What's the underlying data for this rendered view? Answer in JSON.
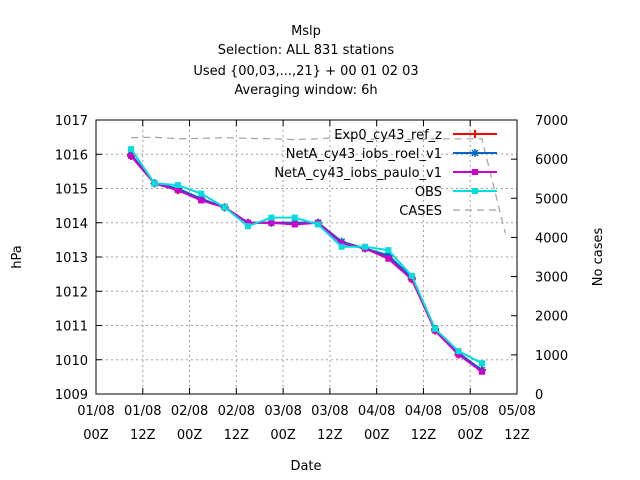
{
  "chart_data": {
    "type": "line",
    "title_lines": [
      "Mslp",
      "Selection: ALL    831 stations",
      "Used {00,03,...,21} + 00 01 02 03",
      "Averaging window:  6h"
    ],
    "xlabel": "Date",
    "ylabel": "hPa",
    "y2label": "No cases",
    "x_ticks": [
      {
        "x": 0,
        "line1": "01/08",
        "line2": "00Z"
      },
      {
        "x": 12,
        "line1": "01/08",
        "line2": "12Z"
      },
      {
        "x": 24,
        "line1": "02/08",
        "line2": "00Z"
      },
      {
        "x": 36,
        "line1": "02/08",
        "line2": "12Z"
      },
      {
        "x": 48,
        "line1": "03/08",
        "line2": "00Z"
      },
      {
        "x": 60,
        "line1": "03/08",
        "line2": "12Z"
      },
      {
        "x": 72,
        "line1": "04/08",
        "line2": "00Z"
      },
      {
        "x": 84,
        "line1": "04/08",
        "line2": "12Z"
      },
      {
        "x": 96,
        "line1": "05/08",
        "line2": "00Z"
      },
      {
        "x": 108,
        "line1": "05/08",
        "line2": "12Z"
      }
    ],
    "xlim": [
      0,
      108
    ],
    "ylim": [
      1009,
      1017
    ],
    "y_ticks": [
      "1009",
      "1010",
      "1011",
      "1012",
      "1013",
      "1014",
      "1015",
      "1016",
      "1017"
    ],
    "y2lim": [
      0,
      7000
    ],
    "y2_ticks": [
      "0",
      "1000",
      "2000",
      "3000",
      "4000",
      "5000",
      "6000",
      "7000"
    ],
    "grid": true,
    "legend_position": "top-right",
    "x": [
      9,
      15,
      21,
      27,
      33,
      39,
      45,
      51,
      57,
      63,
      69,
      75,
      81,
      87,
      93,
      99
    ],
    "series": [
      {
        "name": "Exp0_cy43_ref_z",
        "color": "#ff0000",
        "marker": "plus",
        "values": [
          1015.95,
          1015.15,
          1014.95,
          1014.7,
          1014.45,
          1014.0,
          1014.0,
          1014.0,
          1014.0,
          1013.4,
          1013.25,
          1013.0,
          1012.35,
          1010.85,
          1010.15,
          1009.7
        ]
      },
      {
        "name": "NetA_cy43_iobs_roel_v1",
        "color": "#0066cc",
        "marker": "star",
        "values": [
          1016.0,
          1015.15,
          1015.0,
          1014.7,
          1014.45,
          1014.0,
          1014.0,
          1014.0,
          1014.0,
          1013.45,
          1013.25,
          1013.05,
          1012.4,
          1010.9,
          1010.2,
          1009.7
        ]
      },
      {
        "name": "NetA_cy43_iobs_paulo_v1",
        "color": "#cc00cc",
        "marker": "square",
        "values": [
          1015.95,
          1015.15,
          1014.95,
          1014.65,
          1014.45,
          1014.0,
          1014.0,
          1013.95,
          1014.0,
          1013.4,
          1013.25,
          1012.95,
          1012.35,
          1010.85,
          1010.15,
          1009.65
        ]
      },
      {
        "name": "OBS",
        "color": "#00dddd",
        "marker": "square",
        "values": [
          1016.15,
          1015.15,
          1015.1,
          1014.85,
          1014.45,
          1013.9,
          1014.15,
          1014.15,
          1013.95,
          1013.3,
          1013.3,
          1013.2,
          1012.45,
          1010.9,
          1010.25,
          1009.9
        ]
      }
    ],
    "cases_series": {
      "name": "CASES",
      "color": "#a0a0a0",
      "dash": true,
      "axis": "y2",
      "x": [
        9,
        15,
        21,
        27,
        33,
        39,
        45,
        51,
        57,
        63,
        69,
        75,
        81,
        87,
        93,
        99,
        105
      ],
      "values": [
        6550,
        6560,
        6520,
        6530,
        6550,
        6530,
        6520,
        6500,
        6520,
        6560,
        6500,
        6530,
        6500,
        6520,
        6520,
        6520,
        4100
      ]
    }
  }
}
